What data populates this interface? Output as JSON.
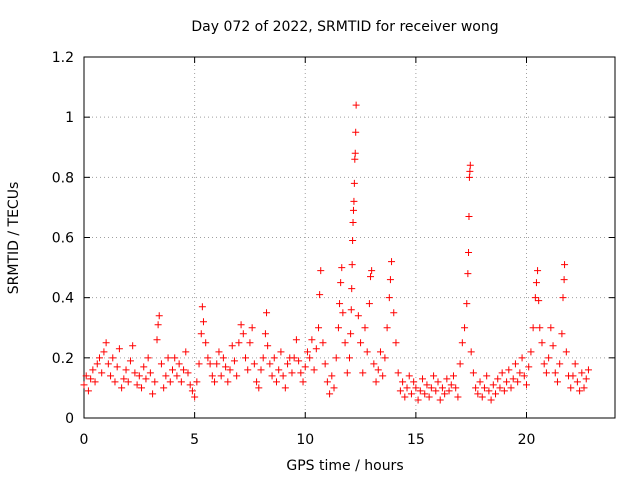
{
  "chart_data": {
    "type": "scatter",
    "title": "Day 072 of 2022, SRMTID for receiver wong",
    "xlabel": "GPS time / hours",
    "ylabel": "SRMTID / TECUs",
    "xlim": [
      0,
      24
    ],
    "ylim": [
      0,
      1.2
    ],
    "x_ticks": [
      0,
      5,
      10,
      15,
      20
    ],
    "y_ticks": [
      0,
      0.2,
      0.4,
      0.6,
      0.8,
      1,
      1.2
    ],
    "x_tick_labels": [
      "0",
      "5",
      "10",
      "15",
      "20"
    ],
    "y_tick_labels": [
      "0",
      "0.2",
      "0.4",
      "0.6",
      "0.8",
      "1",
      "1.2"
    ],
    "grid": true,
    "marker": "+",
    "color": "#ff0000",
    "series": [
      {
        "name": "SRMTID",
        "points": [
          [
            0.0,
            0.11
          ],
          [
            0.1,
            0.14
          ],
          [
            0.2,
            0.09
          ],
          [
            0.3,
            0.13
          ],
          [
            0.4,
            0.16
          ],
          [
            0.5,
            0.12
          ],
          [
            0.6,
            0.18
          ],
          [
            0.7,
            0.2
          ],
          [
            0.8,
            0.15
          ],
          [
            0.9,
            0.22
          ],
          [
            1.0,
            0.25
          ],
          [
            1.1,
            0.18
          ],
          [
            1.2,
            0.14
          ],
          [
            1.3,
            0.2
          ],
          [
            1.4,
            0.12
          ],
          [
            1.5,
            0.17
          ],
          [
            1.6,
            0.23
          ],
          [
            1.7,
            0.1
          ],
          [
            1.8,
            0.13
          ],
          [
            1.9,
            0.16
          ],
          [
            2.0,
            0.12
          ],
          [
            2.1,
            0.19
          ],
          [
            2.2,
            0.24
          ],
          [
            2.3,
            0.15
          ],
          [
            2.4,
            0.11
          ],
          [
            2.5,
            0.14
          ],
          [
            2.6,
            0.1
          ],
          [
            2.7,
            0.17
          ],
          [
            2.8,
            0.13
          ],
          [
            2.9,
            0.2
          ],
          [
            3.0,
            0.15
          ],
          [
            3.1,
            0.08
          ],
          [
            3.2,
            0.12
          ],
          [
            3.3,
            0.26
          ],
          [
            3.35,
            0.31
          ],
          [
            3.4,
            0.34
          ],
          [
            3.5,
            0.18
          ],
          [
            3.6,
            0.1
          ],
          [
            3.7,
            0.14
          ],
          [
            3.8,
            0.2
          ],
          [
            3.9,
            0.12
          ],
          [
            4.0,
            0.16
          ],
          [
            4.1,
            0.2
          ],
          [
            4.2,
            0.14
          ],
          [
            4.3,
            0.18
          ],
          [
            4.4,
            0.12
          ],
          [
            4.5,
            0.16
          ],
          [
            4.6,
            0.22
          ],
          [
            4.7,
            0.15
          ],
          [
            4.8,
            0.11
          ],
          [
            4.9,
            0.09
          ],
          [
            5.0,
            0.07
          ],
          [
            5.1,
            0.12
          ],
          [
            5.2,
            0.18
          ],
          [
            5.3,
            0.28
          ],
          [
            5.35,
            0.37
          ],
          [
            5.4,
            0.32
          ],
          [
            5.5,
            0.25
          ],
          [
            5.6,
            0.2
          ],
          [
            5.7,
            0.18
          ],
          [
            5.8,
            0.14
          ],
          [
            5.9,
            0.12
          ],
          [
            6.0,
            0.18
          ],
          [
            6.1,
            0.22
          ],
          [
            6.2,
            0.14
          ],
          [
            6.3,
            0.2
          ],
          [
            6.4,
            0.17
          ],
          [
            6.5,
            0.12
          ],
          [
            6.6,
            0.16
          ],
          [
            6.7,
            0.24
          ],
          [
            6.8,
            0.19
          ],
          [
            6.9,
            0.14
          ],
          [
            7.0,
            0.25
          ],
          [
            7.1,
            0.31
          ],
          [
            7.2,
            0.28
          ],
          [
            7.3,
            0.2
          ],
          [
            7.4,
            0.16
          ],
          [
            7.5,
            0.25
          ],
          [
            7.6,
            0.3
          ],
          [
            7.7,
            0.18
          ],
          [
            7.8,
            0.12
          ],
          [
            7.9,
            0.1
          ],
          [
            8.0,
            0.16
          ],
          [
            8.1,
            0.2
          ],
          [
            8.2,
            0.28
          ],
          [
            8.25,
            0.35
          ],
          [
            8.3,
            0.24
          ],
          [
            8.4,
            0.18
          ],
          [
            8.5,
            0.14
          ],
          [
            8.6,
            0.2
          ],
          [
            8.7,
            0.12
          ],
          [
            8.8,
            0.16
          ],
          [
            8.9,
            0.22
          ],
          [
            9.0,
            0.14
          ],
          [
            9.1,
            0.1
          ],
          [
            9.2,
            0.18
          ],
          [
            9.3,
            0.2
          ],
          [
            9.4,
            0.15
          ],
          [
            9.5,
            0.2
          ],
          [
            9.6,
            0.26
          ],
          [
            9.7,
            0.19
          ],
          [
            9.8,
            0.15
          ],
          [
            9.9,
            0.12
          ],
          [
            10.0,
            0.17
          ],
          [
            10.1,
            0.22
          ],
          [
            10.2,
            0.2
          ],
          [
            10.3,
            0.26
          ],
          [
            10.4,
            0.16
          ],
          [
            10.5,
            0.23
          ],
          [
            10.6,
            0.3
          ],
          [
            10.65,
            0.41
          ],
          [
            10.7,
            0.49
          ],
          [
            10.8,
            0.25
          ],
          [
            10.9,
            0.18
          ],
          [
            11.0,
            0.12
          ],
          [
            11.1,
            0.08
          ],
          [
            11.2,
            0.14
          ],
          [
            11.3,
            0.1
          ],
          [
            11.4,
            0.2
          ],
          [
            11.5,
            0.3
          ],
          [
            11.55,
            0.38
          ],
          [
            11.6,
            0.45
          ],
          [
            11.65,
            0.5
          ],
          [
            11.7,
            0.35
          ],
          [
            11.8,
            0.25
          ],
          [
            11.9,
            0.15
          ],
          [
            12.0,
            0.2
          ],
          [
            12.05,
            0.28
          ],
          [
            12.08,
            0.36
          ],
          [
            12.1,
            0.43
          ],
          [
            12.12,
            0.51
          ],
          [
            12.14,
            0.59
          ],
          [
            12.16,
            0.65
          ],
          [
            12.18,
            0.69
          ],
          [
            12.2,
            0.72
          ],
          [
            12.22,
            0.78
          ],
          [
            12.24,
            0.86
          ],
          [
            12.26,
            0.88
          ],
          [
            12.28,
            0.95
          ],
          [
            12.3,
            1.04
          ],
          [
            12.4,
            0.34
          ],
          [
            12.5,
            0.25
          ],
          [
            12.6,
            0.15
          ],
          [
            12.7,
            0.3
          ],
          [
            12.8,
            0.22
          ],
          [
            12.9,
            0.38
          ],
          [
            12.95,
            0.47
          ],
          [
            13.0,
            0.49
          ],
          [
            13.1,
            0.18
          ],
          [
            13.2,
            0.12
          ],
          [
            13.3,
            0.16
          ],
          [
            13.4,
            0.22
          ],
          [
            13.5,
            0.14
          ],
          [
            13.6,
            0.2
          ],
          [
            13.7,
            0.3
          ],
          [
            13.8,
            0.4
          ],
          [
            13.85,
            0.46
          ],
          [
            13.9,
            0.52
          ],
          [
            14.0,
            0.35
          ],
          [
            14.1,
            0.25
          ],
          [
            14.2,
            0.15
          ],
          [
            14.3,
            0.09
          ],
          [
            14.4,
            0.12
          ],
          [
            14.5,
            0.07
          ],
          [
            14.6,
            0.1
          ],
          [
            14.7,
            0.14
          ],
          [
            14.8,
            0.08
          ],
          [
            14.9,
            0.12
          ],
          [
            15.0,
            0.1
          ],
          [
            15.1,
            0.06
          ],
          [
            15.2,
            0.09
          ],
          [
            15.3,
            0.13
          ],
          [
            15.4,
            0.08
          ],
          [
            15.5,
            0.11
          ],
          [
            15.6,
            0.07
          ],
          [
            15.7,
            0.1
          ],
          [
            15.8,
            0.14
          ],
          [
            15.9,
            0.09
          ],
          [
            16.0,
            0.12
          ],
          [
            16.1,
            0.06
          ],
          [
            16.2,
            0.1
          ],
          [
            16.3,
            0.08
          ],
          [
            16.4,
            0.13
          ],
          [
            16.5,
            0.09
          ],
          [
            16.6,
            0.11
          ],
          [
            16.7,
            0.14
          ],
          [
            16.8,
            0.1
          ],
          [
            16.9,
            0.07
          ],
          [
            17.0,
            0.18
          ],
          [
            17.1,
            0.25
          ],
          [
            17.2,
            0.3
          ],
          [
            17.3,
            0.38
          ],
          [
            17.35,
            0.48
          ],
          [
            17.38,
            0.55
          ],
          [
            17.4,
            0.67
          ],
          [
            17.42,
            0.8
          ],
          [
            17.44,
            0.82
          ],
          [
            17.46,
            0.84
          ],
          [
            17.5,
            0.22
          ],
          [
            17.6,
            0.15
          ],
          [
            17.7,
            0.1
          ],
          [
            17.8,
            0.08
          ],
          [
            17.9,
            0.12
          ],
          [
            18.0,
            0.07
          ],
          [
            18.1,
            0.1
          ],
          [
            18.2,
            0.14
          ],
          [
            18.3,
            0.09
          ],
          [
            18.4,
            0.06
          ],
          [
            18.5,
            0.11
          ],
          [
            18.6,
            0.08
          ],
          [
            18.7,
            0.13
          ],
          [
            18.8,
            0.1
          ],
          [
            18.9,
            0.15
          ],
          [
            19.0,
            0.09
          ],
          [
            19.1,
            0.12
          ],
          [
            19.2,
            0.16
          ],
          [
            19.3,
            0.1
          ],
          [
            19.4,
            0.13
          ],
          [
            19.5,
            0.18
          ],
          [
            19.6,
            0.12
          ],
          [
            19.7,
            0.15
          ],
          [
            19.8,
            0.2
          ],
          [
            19.9,
            0.14
          ],
          [
            20.0,
            0.11
          ],
          [
            20.1,
            0.17
          ],
          [
            20.2,
            0.22
          ],
          [
            20.3,
            0.3
          ],
          [
            20.4,
            0.4
          ],
          [
            20.45,
            0.45
          ],
          [
            20.5,
            0.49
          ],
          [
            20.55,
            0.39
          ],
          [
            20.6,
            0.3
          ],
          [
            20.7,
            0.25
          ],
          [
            20.8,
            0.18
          ],
          [
            20.9,
            0.15
          ],
          [
            21.0,
            0.2
          ],
          [
            21.1,
            0.3
          ],
          [
            21.2,
            0.24
          ],
          [
            21.3,
            0.15
          ],
          [
            21.4,
            0.12
          ],
          [
            21.5,
            0.18
          ],
          [
            21.6,
            0.28
          ],
          [
            21.65,
            0.4
          ],
          [
            21.7,
            0.46
          ],
          [
            21.72,
            0.51
          ],
          [
            21.8,
            0.22
          ],
          [
            21.9,
            0.14
          ],
          [
            22.0,
            0.1
          ],
          [
            22.1,
            0.14
          ],
          [
            22.2,
            0.18
          ],
          [
            22.3,
            0.12
          ],
          [
            22.4,
            0.09
          ],
          [
            22.5,
            0.15
          ],
          [
            22.6,
            0.1
          ],
          [
            22.7,
            0.13
          ],
          [
            22.8,
            0.16
          ]
        ]
      }
    ]
  }
}
